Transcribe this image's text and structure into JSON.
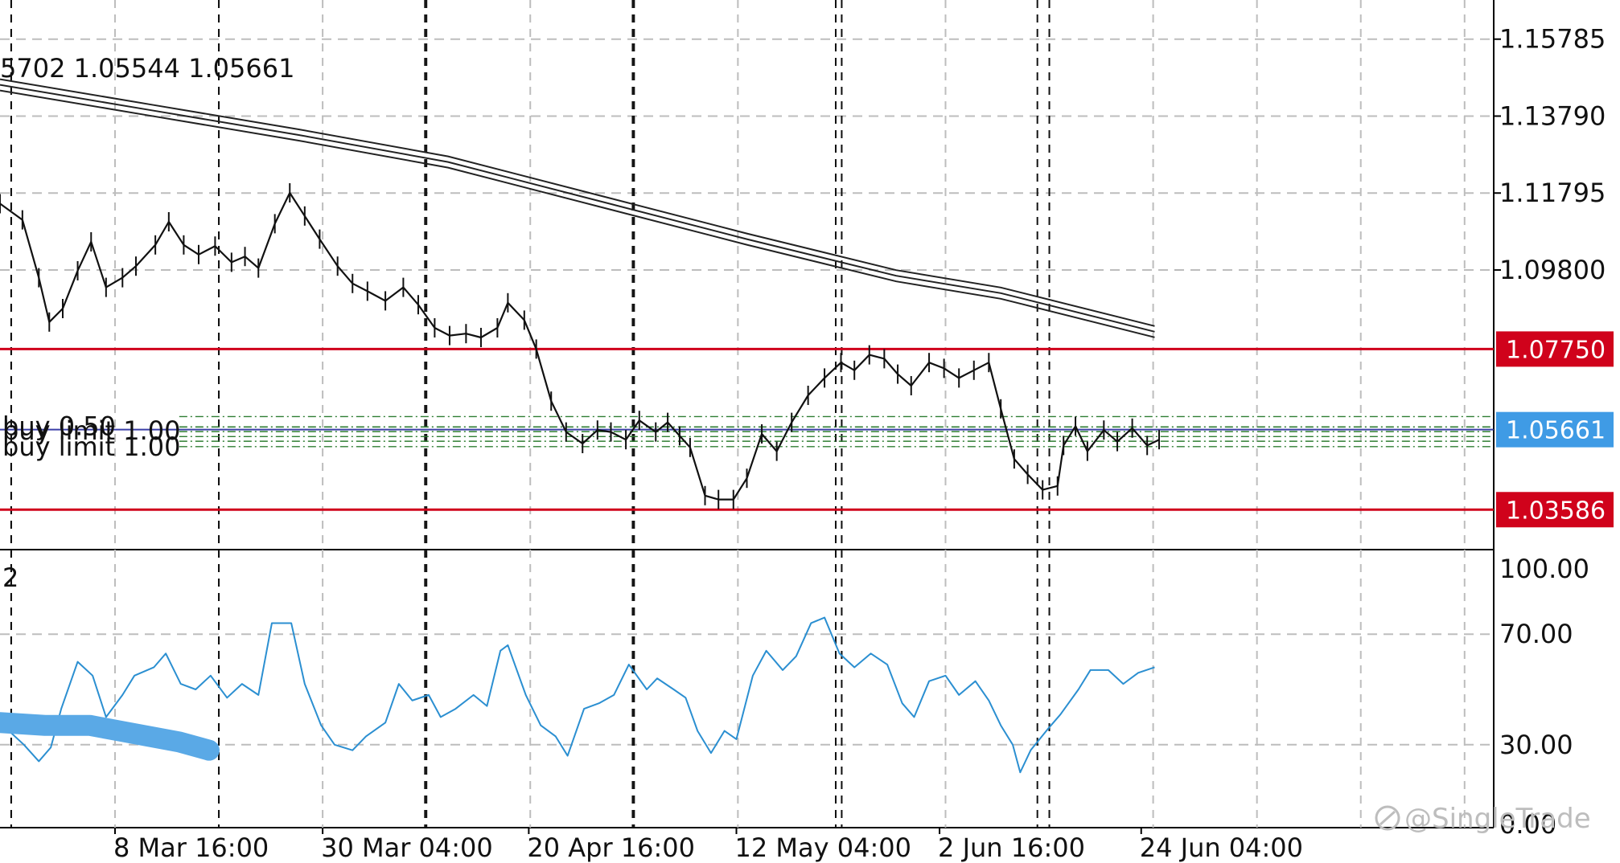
{
  "ohlc_readout": "5702 1.05544 1.05661",
  "indicator_label": "2",
  "watermark": "@SingleTrade",
  "orders": [
    {
      "label": "buy  0.50",
      "price": 1.0573
    },
    {
      "label": "buy limit  1.00",
      "price": 1.0561
    },
    {
      "label": "buy limit  1.00",
      "price": 1.0536
    }
  ],
  "colors": {
    "background": "#ffffff",
    "price_line": "#111111",
    "ma_band": "#222222",
    "level_line": "#d0021b",
    "current_price": "#3f9be5",
    "current_line": "#3a3fa6",
    "order_line": "#2e7d32",
    "grid": "#bdbdbd",
    "separator": "#000000",
    "oscillator": "#2b8fd1",
    "annotation": "#5aa9e6"
  },
  "chart_data": [
    {
      "type": "line",
      "chart_kind": "price-bars",
      "ylim": [
        1.0255,
        1.168
      ],
      "yticks": [
        1.15785,
        1.1379,
        1.11795,
        1.098
      ],
      "ytick_labels": [
        "1.15785",
        "1.13790",
        "1.11795",
        "1.09800"
      ],
      "x_labels": [
        "8 Mar 16:00",
        "30 Mar 04:00",
        "20 Apr 16:00",
        "12 May 04:00",
        "2 Jun 16:00",
        "24 Jun 04:00"
      ],
      "x_range": [
        0,
        100
      ],
      "x_label_positions": [
        7.7,
        21.6,
        35.4,
        49.3,
        62.9,
        76.4
      ],
      "series": [
        {
          "values": [
            [
              0,
              1.1152
            ],
            [
              1.5,
              1.111
            ],
            [
              2.6,
              1.096
            ],
            [
              3.3,
              1.0845
            ],
            [
              4.2,
              1.088
            ],
            [
              5.2,
              1.0978
            ],
            [
              6.1,
              1.1053
            ],
            [
              7.1,
              1.0935
            ],
            [
              8.2,
              1.096
            ],
            [
              9.1,
              1.099
            ],
            [
              10.4,
              1.1045
            ],
            [
              11.3,
              1.1105
            ],
            [
              12.3,
              1.1045
            ],
            [
              13.3,
              1.102
            ],
            [
              14.4,
              1.1042
            ],
            [
              15.5,
              1.1
            ],
            [
              16.4,
              1.1015
            ],
            [
              17.3,
              1.0985
            ],
            [
              18.4,
              1.11
            ],
            [
              19.4,
              1.118
            ],
            [
              20.4,
              1.112
            ],
            [
              21.4,
              1.106
            ],
            [
              22.6,
              1.099
            ],
            [
              23.6,
              1.0945
            ],
            [
              24.6,
              1.0925
            ],
            [
              25.8,
              1.09
            ],
            [
              27.0,
              1.0935
            ],
            [
              28.0,
              1.089
            ],
            [
              29.1,
              1.083
            ],
            [
              30.1,
              1.081
            ],
            [
              31.2,
              1.0815
            ],
            [
              32.2,
              1.0805
            ],
            [
              33.3,
              1.083
            ],
            [
              34.0,
              1.0895
            ],
            [
              35.1,
              1.085
            ],
            [
              35.9,
              1.0775
            ],
            [
              36.9,
              1.064
            ],
            [
              37.9,
              1.056
            ],
            [
              39.0,
              1.053
            ],
            [
              40.0,
              1.0565
            ],
            [
              40.9,
              1.056
            ],
            [
              41.9,
              1.054
            ],
            [
              42.8,
              1.059
            ],
            [
              43.9,
              1.056
            ],
            [
              44.7,
              1.0585
            ],
            [
              45.5,
              1.055
            ],
            [
              46.2,
              1.052
            ],
            [
              47.2,
              1.0395
            ],
            [
              48.1,
              1.0385
            ],
            [
              49.1,
              1.0385
            ],
            [
              50.0,
              1.044
            ],
            [
              51.0,
              1.0555
            ],
            [
              52.0,
              1.051
            ],
            [
              53.0,
              1.0585
            ],
            [
              54.1,
              1.0655
            ],
            [
              55.2,
              1.07
            ],
            [
              56.3,
              1.074
            ],
            [
              57.2,
              1.072
            ],
            [
              58.2,
              1.076
            ],
            [
              59.2,
              1.075
            ],
            [
              60.1,
              1.071
            ],
            [
              61.0,
              1.068
            ],
            [
              62.2,
              1.074
            ],
            [
              63.2,
              1.0725
            ],
            [
              64.2,
              1.07
            ],
            [
              65.2,
              1.072
            ],
            [
              66.2,
              1.074
            ],
            [
              67.0,
              1.062
            ],
            [
              67.9,
              1.049
            ],
            [
              68.8,
              1.045
            ],
            [
              69.8,
              1.041
            ],
            [
              70.8,
              1.042
            ],
            [
              71.2,
              1.0525
            ],
            [
              72.0,
              1.0575
            ],
            [
              72.8,
              1.051
            ],
            [
              73.9,
              1.0565
            ],
            [
              74.8,
              1.0535
            ],
            [
              75.8,
              1.057
            ],
            [
              76.8,
              1.0525
            ],
            [
              77.6,
              1.054
            ]
          ]
        },
        {
          "name": "",
          "values": [
            [
              0,
              1.146
            ],
            [
              10,
              1.1395
            ],
            [
              20,
              1.133
            ],
            [
              30,
              1.126
            ],
            [
              40,
              1.116
            ],
            [
              50,
              1.106
            ],
            [
              60,
              1.0965
            ],
            [
              67,
              1.092
            ],
            [
              77.3,
              1.082
            ]
          ]
        }
      ],
      "horizontal_levels": [
        {
          "value": 1.0775,
          "label": "1.07750",
          "kind": "resistance"
        },
        {
          "value": 1.05661,
          "label": "1.05661",
          "kind": "current"
        },
        {
          "value": 1.03586,
          "label": "1.03586",
          "kind": "support"
        }
      ],
      "grid": true
    },
    {
      "type": "line",
      "chart_kind": "oscillator",
      "ylim": [
        0,
        100
      ],
      "yticks": [
        100,
        70,
        30,
        0
      ],
      "ytick_labels": [
        "100.00",
        "70.00",
        "30.00",
        "0.00"
      ],
      "series": [
        {
          "values": [
            [
              0,
              38
            ],
            [
              1.6,
              30
            ],
            [
              2.6,
              24
            ],
            [
              3.4,
              29
            ],
            [
              4.1,
              43
            ],
            [
              5.2,
              60
            ],
            [
              6.2,
              55
            ],
            [
              7.1,
              40
            ],
            [
              8.2,
              48
            ],
            [
              9.0,
              55
            ],
            [
              10.3,
              58
            ],
            [
              11.1,
              63
            ],
            [
              12.1,
              52
            ],
            [
              13.1,
              50
            ],
            [
              14.1,
              55
            ],
            [
              15.2,
              47
            ],
            [
              16.2,
              52
            ],
            [
              17.3,
              48
            ],
            [
              18.2,
              74
            ],
            [
              19.5,
              74
            ],
            [
              20.4,
              52
            ],
            [
              21.5,
              37
            ],
            [
              22.4,
              30
            ],
            [
              23.6,
              28
            ],
            [
              24.5,
              33
            ],
            [
              25.8,
              38
            ],
            [
              26.7,
              52
            ],
            [
              27.6,
              46
            ],
            [
              28.7,
              48
            ],
            [
              29.5,
              40
            ],
            [
              30.5,
              43
            ],
            [
              31.7,
              48
            ],
            [
              32.6,
              44
            ],
            [
              33.5,
              64
            ],
            [
              34.0,
              66
            ],
            [
              35.2,
              48
            ],
            [
              36.2,
              37
            ],
            [
              37.2,
              33
            ],
            [
              38.0,
              26
            ],
            [
              39.1,
              43
            ],
            [
              40.1,
              45
            ],
            [
              41.1,
              48
            ],
            [
              42.1,
              59
            ],
            [
              43.3,
              50
            ],
            [
              44.0,
              54
            ],
            [
              45.1,
              50
            ],
            [
              45.9,
              47
            ],
            [
              46.7,
              35
            ],
            [
              47.6,
              27
            ],
            [
              48.5,
              35
            ],
            [
              49.3,
              32
            ],
            [
              50.4,
              55
            ],
            [
              51.3,
              64
            ],
            [
              52.4,
              57
            ],
            [
              53.3,
              62
            ],
            [
              54.3,
              74
            ],
            [
              55.2,
              76
            ],
            [
              56.2,
              63
            ],
            [
              57.2,
              58
            ],
            [
              58.3,
              63
            ],
            [
              59.4,
              59
            ],
            [
              60.4,
              45
            ],
            [
              61.2,
              40
            ],
            [
              62.2,
              53
            ],
            [
              63.3,
              55
            ],
            [
              64.2,
              48
            ],
            [
              65.3,
              53
            ],
            [
              66.2,
              46
            ],
            [
              67.0,
              37
            ],
            [
              67.8,
              30
            ],
            [
              68.3,
              20
            ],
            [
              69.0,
              28
            ],
            [
              70.2,
              36
            ],
            [
              71.0,
              41
            ],
            [
              72.2,
              50
            ],
            [
              73.0,
              57
            ],
            [
              74.2,
              57
            ],
            [
              75.2,
              52
            ],
            [
              76.2,
              56
            ],
            [
              77.3,
              58
            ]
          ]
        }
      ],
      "horizontal_levels": [
        {
          "value": 70
        },
        {
          "value": 30
        }
      ],
      "grid": true
    }
  ]
}
